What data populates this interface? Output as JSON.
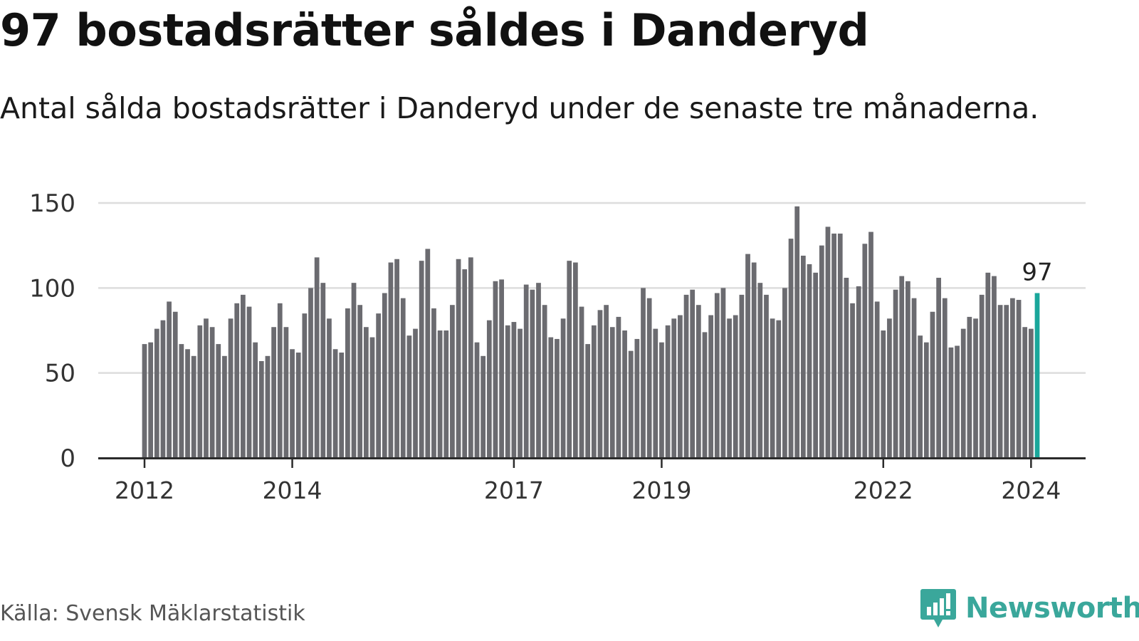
{
  "header": {
    "title": "97 bostadsrätter såldes i Danderyd",
    "subtitle": "Antal sålda bostadsrätter i Danderyd under de senaste tre månaderna."
  },
  "footer": {
    "source": "Källa: Svensk Mäklarstatistik",
    "brand": "Newsworthy"
  },
  "colors": {
    "bar": "#6b6b70",
    "highlight": "#1aa79b",
    "grid": "#dddddd",
    "axis": "#2b2b2b",
    "brand": "#3aa79b"
  },
  "chart_data": {
    "type": "bar",
    "title": "97 bostadsrätter såldes i Danderyd",
    "xlabel": "",
    "ylabel": "",
    "ylim": [
      0,
      150
    ],
    "y_ticks": [
      0,
      50,
      100,
      150
    ],
    "grid": true,
    "x_tick_labels": [
      {
        "label": "2012",
        "index": 0
      },
      {
        "label": "2014",
        "index": 24
      },
      {
        "label": "2017",
        "index": 60
      },
      {
        "label": "2019",
        "index": 84
      },
      {
        "label": "2022",
        "index": 120
      },
      {
        "label": "2024",
        "index": 144
      }
    ],
    "highlight": {
      "index": 145,
      "label": "97"
    },
    "series": [
      {
        "name": "Antal sålda bostadsrätter",
        "values": [
          67,
          68,
          76,
          81,
          92,
          86,
          67,
          64,
          60,
          78,
          82,
          77,
          67,
          60,
          82,
          91,
          96,
          89,
          68,
          57,
          60,
          77,
          91,
          77,
          64,
          62,
          85,
          100,
          118,
          103,
          82,
          64,
          62,
          88,
          103,
          90,
          77,
          71,
          85,
          97,
          115,
          117,
          94,
          72,
          76,
          116,
          123,
          88,
          75,
          75,
          90,
          117,
          111,
          118,
          68,
          60,
          81,
          104,
          105,
          78,
          80,
          76,
          102,
          99,
          103,
          90,
          71,
          70,
          82,
          116,
          115,
          89,
          67,
          78,
          87,
          90,
          77,
          83,
          75,
          63,
          70,
          100,
          94,
          76,
          68,
          78,
          82,
          84,
          96,
          99,
          90,
          74,
          84,
          97,
          100,
          82,
          84,
          96,
          120,
          115,
          103,
          96,
          82,
          81,
          100,
          129,
          148,
          119,
          114,
          109,
          125,
          136,
          132,
          132,
          106,
          91,
          101,
          126,
          133,
          92,
          75,
          82,
          99,
          107,
          104,
          94,
          72,
          68,
          86,
          106,
          94,
          65,
          66,
          76,
          83,
          82,
          96,
          109,
          107,
          90,
          90,
          94,
          93,
          77,
          76,
          97
        ]
      }
    ]
  }
}
